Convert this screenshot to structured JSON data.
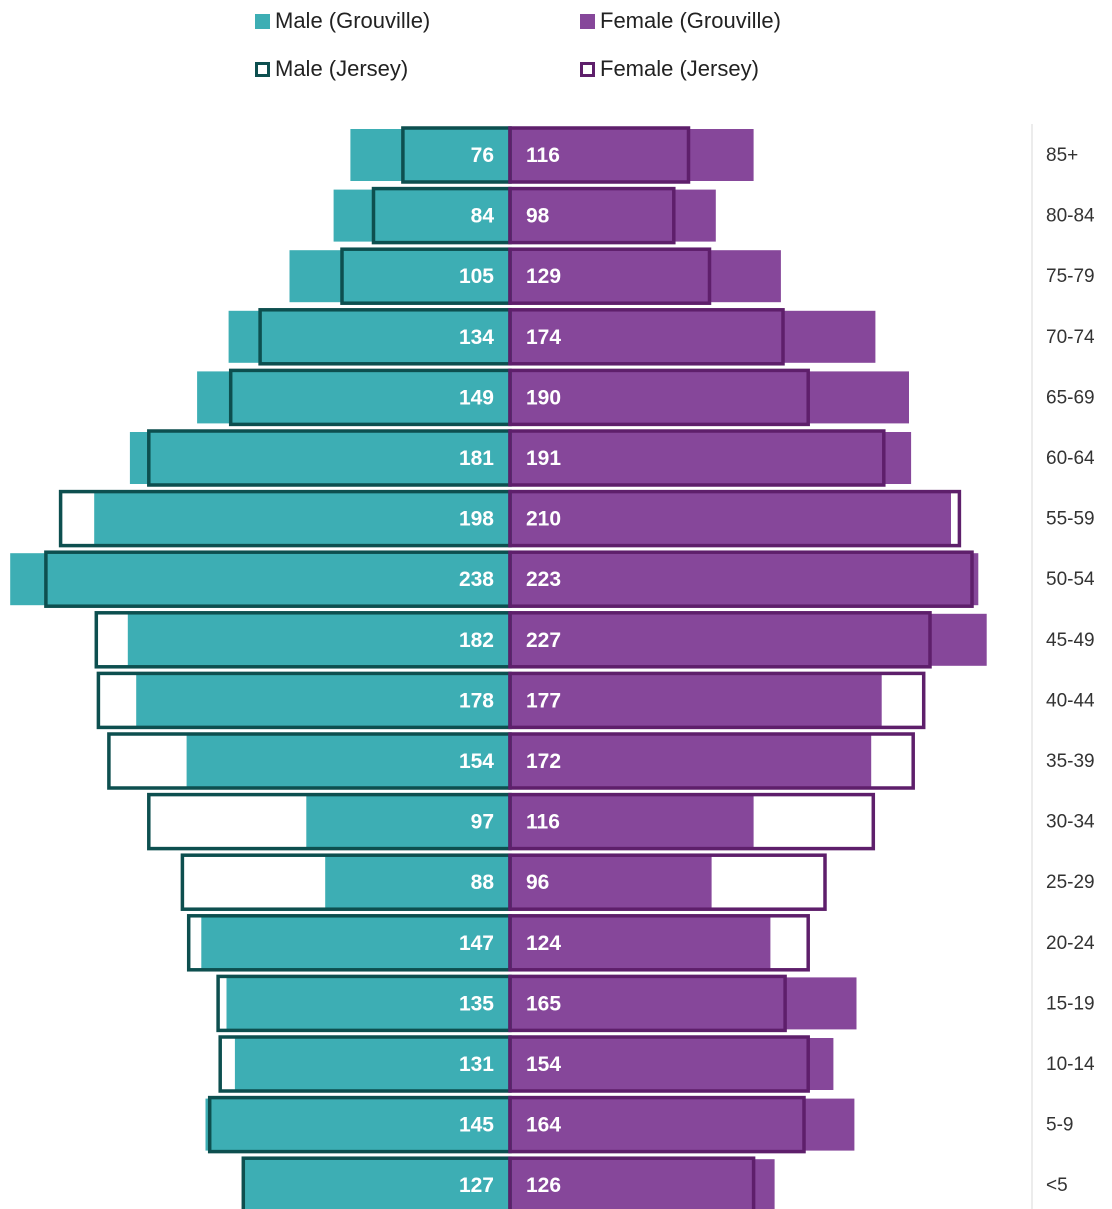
{
  "chart_data": {
    "type": "bar",
    "categories": [
      "85+",
      "80-84",
      "75-79",
      "70-74",
      "65-69",
      "60-64",
      "55-59",
      "50-54",
      "45-49",
      "40-44",
      "35-39",
      "30-34",
      "25-29",
      "20-24",
      "15-19",
      "10-14",
      "5-9",
      "<5"
    ],
    "series": [
      {
        "name": "Male (Grouville)",
        "values": [
          76,
          84,
          105,
          134,
          149,
          181,
          198,
          238,
          182,
          178,
          154,
          97,
          88,
          147,
          135,
          131,
          145,
          127
        ]
      },
      {
        "name": "Female (Grouville)",
        "values": [
          116,
          98,
          129,
          174,
          190,
          191,
          210,
          223,
          227,
          177,
          172,
          116,
          96,
          124,
          165,
          154,
          164,
          126
        ]
      },
      {
        "name": "Male (Jersey)",
        "values": [
          51,
          65,
          80,
          119,
          133,
          172,
          214,
          221,
          197,
          196,
          191,
          172,
          156,
          153,
          139,
          138,
          143,
          127
        ]
      },
      {
        "name": "Female (Jersey)",
        "values": [
          85,
          78,
          95,
          130,
          142,
          178,
          214,
          220,
          200,
          197,
          192,
          173,
          150,
          142,
          131,
          142,
          140,
          116
        ]
      }
    ],
    "data_labels": {
      "male": [
        "76",
        "84",
        "105",
        "134",
        "149",
        "181",
        "198",
        "238",
        "182",
        "178",
        "154",
        "97",
        "88",
        "147",
        "135",
        "131",
        "145",
        "127"
      ],
      "female": [
        "116",
        "98",
        "129",
        "174",
        "190",
        "191",
        "210",
        "223",
        "227",
        "177",
        "172",
        "116",
        "96",
        "124",
        "165",
        "154",
        "164",
        "126"
      ]
    },
    "title": "",
    "xlabel": "",
    "ylabel": "",
    "legend_position": "top",
    "colors": {
      "male_grouville": "#3daeb4",
      "female_grouville": "#86479a",
      "male_jersey": "#0d4f4f",
      "female_jersey": "#5e1f6b"
    }
  }
}
